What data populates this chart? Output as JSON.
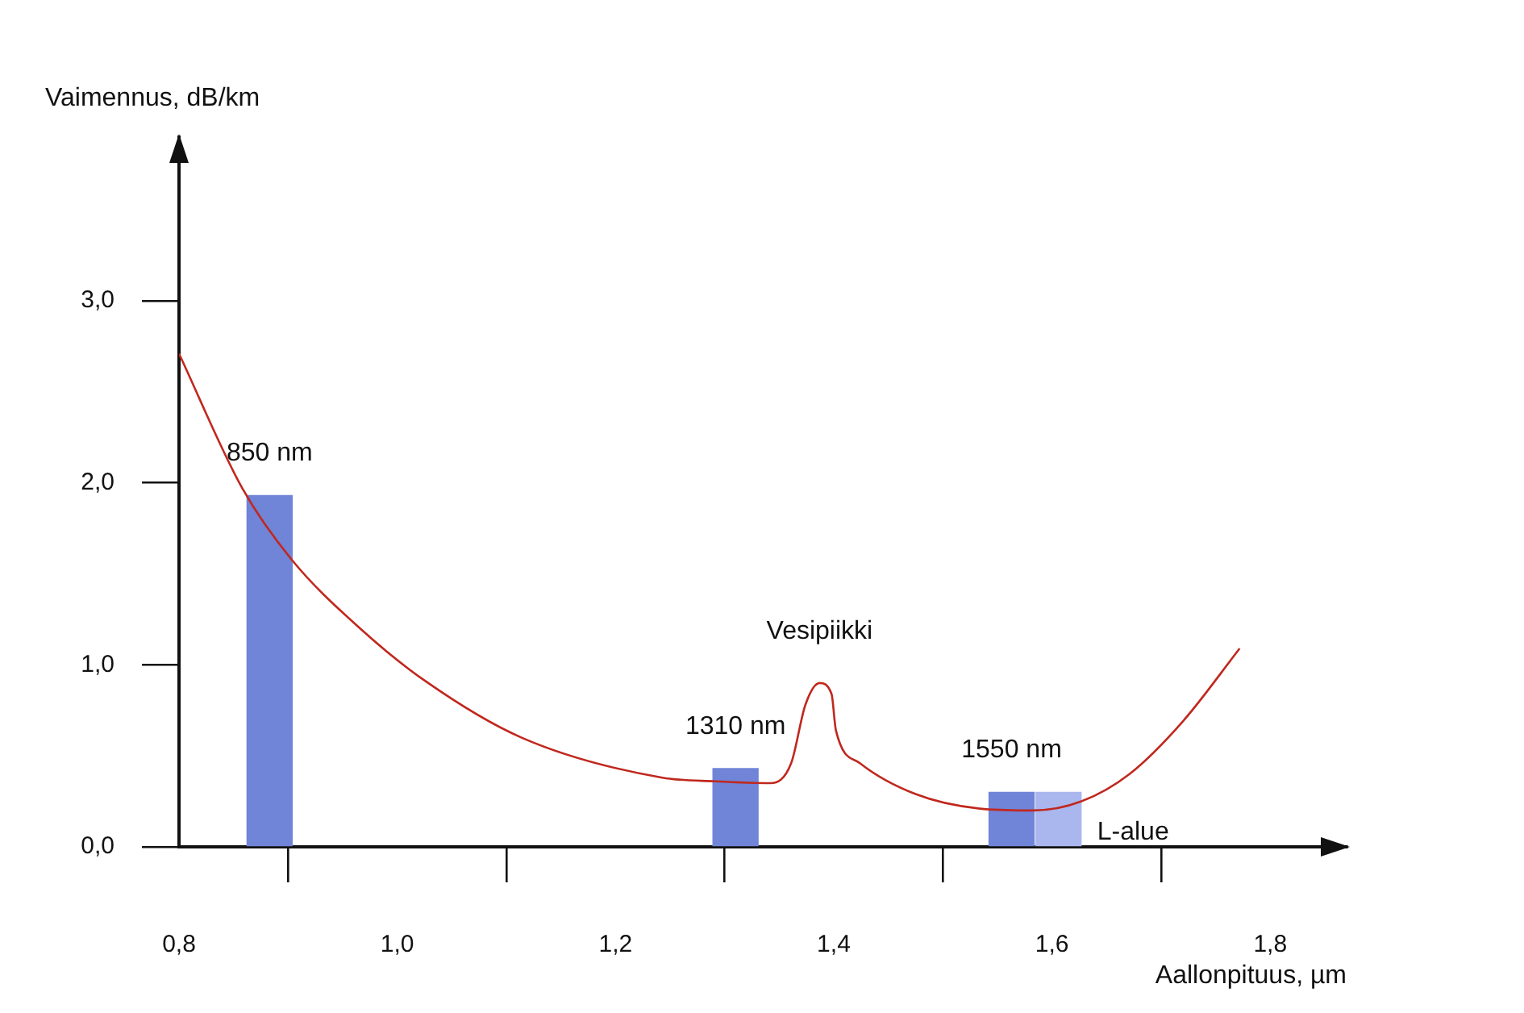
{
  "chart_data": {
    "type": "line",
    "xlabel": "Aallonpituus, µm",
    "ylabel": "Vaimennus, dB/km",
    "xlim": [
      0.8,
      1.87
    ],
    "ylim": [
      0,
      3.9
    ],
    "xticks": [
      {
        "value": 0.8,
        "label": "0,8"
      },
      {
        "value": 1.0,
        "label": "1,0"
      },
      {
        "value": 1.2,
        "label": "1,2"
      },
      {
        "value": 1.4,
        "label": "1,4"
      },
      {
        "value": 1.6,
        "label": "1,6"
      },
      {
        "value": 1.8,
        "label": "1,8"
      }
    ],
    "yticks": [
      {
        "value": 0,
        "label": "0,0"
      },
      {
        "value": 1,
        "label": "1,0"
      },
      {
        "value": 2,
        "label": "2,0"
      },
      {
        "value": 3,
        "label": "3,0"
      }
    ],
    "series": [
      {
        "type": "bar",
        "name": "850 nm",
        "color": "#7084d8",
        "x": [
          0.883
        ],
        "values": [
          1.93
        ]
      },
      {
        "type": "bar",
        "name": "1310 nm",
        "color": "#7084d8",
        "x": [
          1.31
        ],
        "values": [
          0.43
        ]
      },
      {
        "type": "bar",
        "name": "1550 nm",
        "color": "#7084d8",
        "x": [
          1.563
        ],
        "values": [
          0.3
        ]
      },
      {
        "type": "bar",
        "name": "L-alue",
        "color": "#aab6ee",
        "x": [
          1.606
        ],
        "values": [
          0.3
        ]
      },
      {
        "color": "#c0281e",
        "x": [
          0.8,
          0.858,
          0.903,
          0.966,
          1.026,
          1.114,
          1.243,
          1.292,
          1.342,
          1.361,
          1.374,
          1.387,
          1.398,
          1.402,
          1.424,
          1.475,
          1.534,
          1.583,
          1.627,
          1.671,
          1.72,
          1.772
        ],
        "values": [
          2.71,
          1.97,
          1.58,
          1.2,
          0.91,
          0.6,
          0.38,
          0.36,
          0.35,
          0.46,
          0.78,
          0.9,
          0.84,
          0.64,
          0.46,
          0.29,
          0.21,
          0.2,
          0.25,
          0.4,
          0.69,
          1.09
        ]
      }
    ],
    "annotations": [
      {
        "text": "Vesipiikki",
        "x": 1.387,
        "y": 0.9
      }
    ]
  }
}
